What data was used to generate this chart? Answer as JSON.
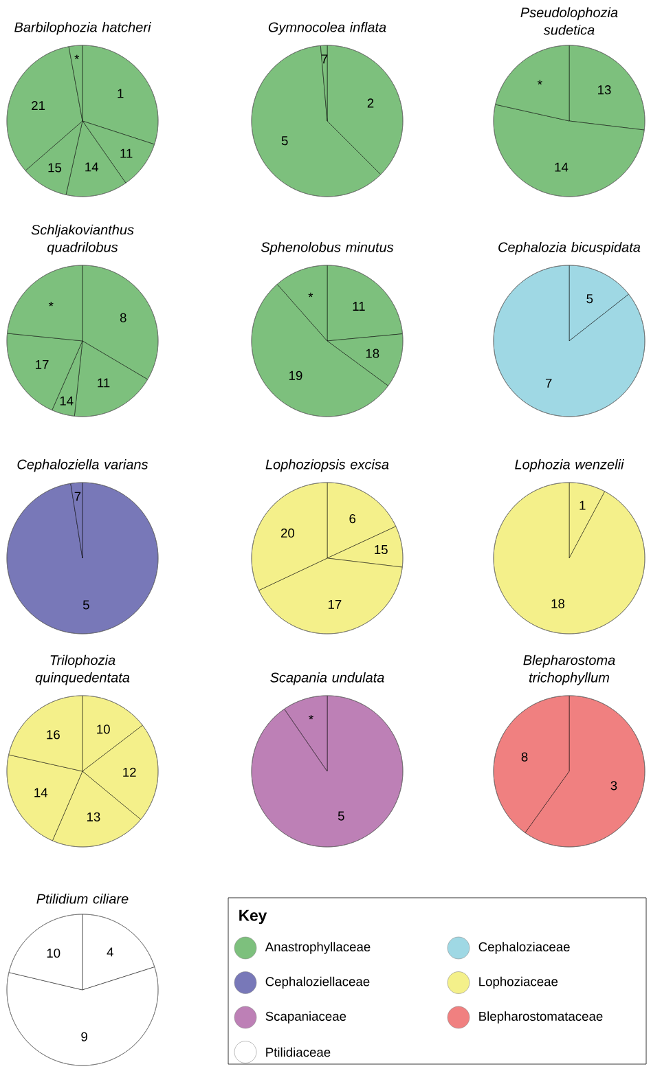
{
  "chart_data": [
    {
      "type": "pie",
      "title": "Barbilophozia hatcheri",
      "categories": [
        "1",
        "11",
        "14",
        "15",
        "21",
        "*"
      ],
      "values": [
        30,
        10.3,
        13.2,
        10.1,
        33.5,
        2.9
      ],
      "colors": [
        "#7dc07d",
        "#7dc07d",
        "#7dc07d",
        "#7dc07d",
        "#7dc07d",
        "#7dc07d"
      ]
    },
    {
      "type": "pie",
      "title": "Gymnocolea inflata",
      "categories": [
        "2",
        "5",
        "7"
      ],
      "values": [
        37.5,
        61.1,
        1.4
      ],
      "colors": [
        "#7dc07d",
        "#7dc07d",
        "#7dc07d"
      ]
    },
    {
      "type": "pie",
      "title": "Pseudolophozia sudetica",
      "categories": [
        "13",
        "14",
        "*"
      ],
      "values": [
        26.9,
        51.6,
        21.5
      ],
      "colors": [
        "#7dc07d",
        "#7dc07d",
        "#7dc07d"
      ]
    },
    {
      "type": "pie",
      "title": "Schljakovianthus quadrilobus",
      "categories": [
        "8",
        "11",
        "14",
        "17",
        "*"
      ],
      "values": [
        33.5,
        18.2,
        4.9,
        20.0,
        23.4
      ],
      "colors": [
        "#7dc07d",
        "#7dc07d",
        "#7dc07d",
        "#7dc07d",
        "#7dc07d"
      ]
    },
    {
      "type": "pie",
      "title": "Sphenolobus minutus",
      "categories": [
        "11",
        "18",
        "19",
        "*"
      ],
      "values": [
        23.5,
        11.6,
        53.4,
        11.5
      ],
      "colors": [
        "#7dc07d",
        "#7dc07d",
        "#7dc07d",
        "#7dc07d"
      ]
    },
    {
      "type": "pie",
      "title": "Cephalozia bicuspidata",
      "categories": [
        "5",
        "7"
      ],
      "values": [
        14.4,
        85.6
      ],
      "colors": [
        "#9fd8e4",
        "#9fd8e4"
      ]
    },
    {
      "type": "pie",
      "title": "Cephaloziella varians",
      "categories": [
        "5",
        "7"
      ],
      "values": [
        97.5,
        2.5
      ],
      "colors": [
        "#7878b8",
        "#7878b8"
      ]
    },
    {
      "type": "pie",
      "title": "Lophoziopsis excisa",
      "categories": [
        "6",
        "15",
        "17",
        "20"
      ],
      "values": [
        18.1,
        8.8,
        41.1,
        32.0
      ],
      "colors": [
        "#f4f08a",
        "#f4f08a",
        "#f4f08a",
        "#f4f08a"
      ]
    },
    {
      "type": "pie",
      "title": "Lophozia wenzelii",
      "categories": [
        "1",
        "18"
      ],
      "values": [
        7.8,
        92.2
      ],
      "colors": [
        "#f4f08a",
        "#f4f08a"
      ]
    },
    {
      "type": "pie",
      "title": "Trilophozia quinquedentata",
      "categories": [
        "10",
        "12",
        "13",
        "14",
        "16"
      ],
      "values": [
        14.6,
        21.4,
        20.5,
        22.0,
        21.5
      ],
      "colors": [
        "#f4f08a",
        "#f4f08a",
        "#f4f08a",
        "#f4f08a",
        "#f4f08a"
      ]
    },
    {
      "type": "pie",
      "title": "Scapania undulata",
      "categories": [
        "5",
        "*"
      ],
      "values": [
        90.4,
        9.6
      ],
      "colors": [
        "#bd80b6",
        "#bd80b6"
      ]
    },
    {
      "type": "pie",
      "title": "Blepharostoma trichophyllum",
      "categories": [
        "3",
        "8"
      ],
      "values": [
        59.9,
        40.1
      ],
      "colors": [
        "#f08080",
        "#f08080"
      ]
    },
    {
      "type": "pie",
      "title": "Ptilidium ciliare",
      "categories": [
        "4",
        "9",
        "10"
      ],
      "values": [
        20.1,
        58.6,
        21.3
      ],
      "colors": [
        "#ffffff",
        "#ffffff",
        "#ffffff"
      ]
    },
    {
      "type": "other",
      "title": "Key",
      "categories": [
        "Anastrophyllaceae",
        "Cephaloziaceae",
        "Cephaloziellaceae",
        "Lophoziaceae",
        "Scapaniaceae",
        "Blepharostomataceae",
        "Ptilidiaceae"
      ],
      "colors": [
        "#7dc07d",
        "#9fd8e4",
        "#7878b8",
        "#f4f08a",
        "#bd80b6",
        "#f08080",
        "#ffffff"
      ]
    }
  ]
}
